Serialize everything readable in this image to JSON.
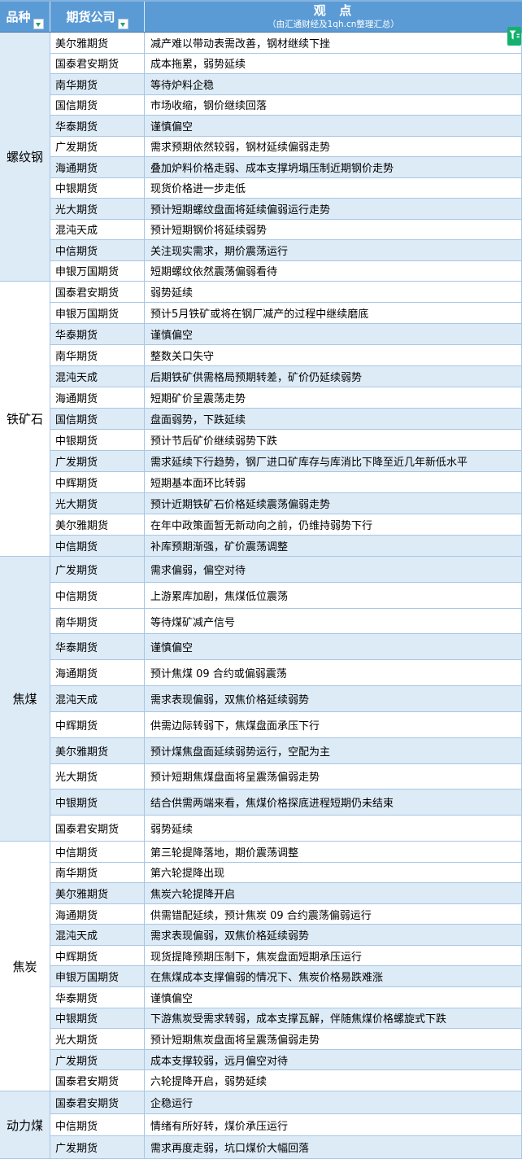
{
  "header": {
    "variety_label": "品种",
    "company_label": "期货公司",
    "viewpoint_title": "观  点",
    "viewpoint_subtitle": "（由汇通财经及1qh.cn整理汇总）",
    "filter_icon": "filter-funnel-icon",
    "dropdown_icon": "chevron-down-icon"
  },
  "colors": {
    "header_bg": "#5b9bd5",
    "header_text": "#ffffff",
    "band_fill": "#ddebf7",
    "grid_border": "#a8c6e5",
    "dropdown_green": "#21a366",
    "filter_badge_green": "#12b26d"
  },
  "sections": [
    {
      "name": "螺纹钢",
      "shaded": true,
      "rows": [
        {
          "company": "美尔雅期货",
          "view": "减产难以带动表需改善，钢材继续下挫",
          "band": false
        },
        {
          "company": "国泰君安期货",
          "view": "成本拖累，弱势延续",
          "band": false
        },
        {
          "company": "南华期货",
          "view": "等待炉料企稳",
          "band": true
        },
        {
          "company": "国信期货",
          "view": "市场收缩，钢价继续回落",
          "band": false
        },
        {
          "company": "华泰期货",
          "view": "谨慎偏空",
          "band": true
        },
        {
          "company": "广发期货",
          "view": "需求预期依然较弱，钢材延续偏弱走势",
          "band": false
        },
        {
          "company": "海通期货",
          "view": "叠加炉料价格走弱、成本支撑坍塌压制近期钢价走势",
          "band": true
        },
        {
          "company": "中银期货",
          "view": "现货价格进一步走低",
          "band": false
        },
        {
          "company": "光大期货",
          "view": "预计短期螺纹盘面将延续偏弱运行走势",
          "band": true
        },
        {
          "company": "混沌天成",
          "view": "预计短期钢价将延续弱势",
          "band": false
        },
        {
          "company": "中信期货",
          "view": "关注现实需求，期价震荡运行",
          "band": true
        },
        {
          "company": "申银万国期货",
          "view": "短期螺纹依然震荡偏弱看待",
          "band": false
        }
      ]
    },
    {
      "name": "铁矿石",
      "shaded": false,
      "rows": [
        {
          "company": "国泰君安期货",
          "view": "弱势延续",
          "band": false
        },
        {
          "company": "申银万国期货",
          "view": "预计5月铁矿或将在钢厂减产的过程中继续磨底",
          "band": false
        },
        {
          "company": "华泰期货",
          "view": "谨慎偏空",
          "band": true
        },
        {
          "company": "南华期货",
          "view": "整数关口失守",
          "band": false
        },
        {
          "company": "混沌天成",
          "view": "后期铁矿供需格局预期转差，矿价仍延续弱势",
          "band": true
        },
        {
          "company": "海通期货",
          "view": "短期矿价呈震荡走势",
          "band": false
        },
        {
          "company": "国信期货",
          "view": "盘面弱势，下跌延续",
          "band": true
        },
        {
          "company": "中银期货",
          "view": "预计节后矿价继续弱势下跌",
          "band": false
        },
        {
          "company": "广发期货",
          "view": "需求延续下行趋势，钢厂进口矿库存与库消比下降至近几年新低水平",
          "band": true
        },
        {
          "company": "中辉期货",
          "view": "短期基本面环比转弱",
          "band": false
        },
        {
          "company": "光大期货",
          "view": "预计近期铁矿石价格延续震荡偏弱走势",
          "band": true
        },
        {
          "company": "美尔雅期货",
          "view": "在年中政策面暂无新动向之前，仍维持弱势下行",
          "band": false
        },
        {
          "company": "中信期货",
          "view": "补库预期渐强，矿价震荡调整",
          "band": true
        }
      ]
    },
    {
      "name": "焦煤",
      "shaded": true,
      "rows": [
        {
          "company": "广发期货",
          "view": "需求偏弱，偏空对待",
          "band": true
        },
        {
          "company": "中信期货",
          "view": "上游累库加剧，焦煤低位震荡",
          "band": false
        },
        {
          "company": "南华期货",
          "view": "等待煤矿减产信号",
          "band": false
        },
        {
          "company": "华泰期货",
          "view": "谨慎偏空",
          "band": true
        },
        {
          "company": "海通期货",
          "view": "预计焦煤 09 合约或偏弱震荡",
          "band": false
        },
        {
          "company": "混沌天成",
          "view": "需求表现偏弱，双焦价格延续弱势",
          "band": true
        },
        {
          "company": "中辉期货",
          "view": "供需边际转弱下，焦煤盘面承压下行",
          "band": false
        },
        {
          "company": "美尔雅期货",
          "view": "预计煤焦盘面延续弱势运行，空配为主",
          "band": true
        },
        {
          "company": "光大期货",
          "view": "预计短期焦煤盘面将呈震荡偏弱走势",
          "band": false
        },
        {
          "company": "中银期货",
          "view": "结合供需两端来看，焦煤价格探底进程短期仍未结束",
          "band": true
        },
        {
          "company": "国泰君安期货",
          "view": "弱势延续",
          "band": false
        }
      ]
    },
    {
      "name": "焦炭",
      "shaded": false,
      "rows": [
        {
          "company": "中信期货",
          "view": "第三轮提降落地，期价震荡调整",
          "band": false
        },
        {
          "company": "南华期货",
          "view": "第六轮提降出现",
          "band": false
        },
        {
          "company": "美尔雅期货",
          "view": "焦炭六轮提降开启",
          "band": true
        },
        {
          "company": "海通期货",
          "view": "供需错配延续，预计焦炭 09 合约震荡偏弱运行",
          "band": false
        },
        {
          "company": "混沌天成",
          "view": "需求表现偏弱，双焦价格延续弱势",
          "band": true
        },
        {
          "company": "中辉期货",
          "view": "现货提降预期压制下，焦炭盘面短期承压运行",
          "band": false
        },
        {
          "company": "申银万国期货",
          "view": "在焦煤成本支撑偏弱的情况下、焦炭价格易跌难涨",
          "band": true
        },
        {
          "company": "华泰期货",
          "view": "谨慎偏空",
          "band": false
        },
        {
          "company": "中银期货",
          "view": "下游焦炭受需求转弱，成本支撑瓦解，伴随焦煤价格螺旋式下跌",
          "band": true
        },
        {
          "company": "光大期货",
          "view": "预计短期焦炭盘面将呈震荡偏弱走势",
          "band": false
        },
        {
          "company": "广发期货",
          "view": "成本支撑较弱，远月偏空对待",
          "band": true
        },
        {
          "company": "国泰君安期货",
          "view": "六轮提降开启，弱势延续",
          "band": false
        }
      ]
    },
    {
      "name": "动力煤",
      "shaded": true,
      "rows": [
        {
          "company": "国泰君安期货",
          "view": "企稳运行",
          "band": true
        },
        {
          "company": "中信期货",
          "view": "情绪有所好转，煤价承压运行",
          "band": false
        },
        {
          "company": "广发期货",
          "view": "需求再度走弱，坑口煤价大幅回落",
          "band": true
        }
      ]
    }
  ]
}
